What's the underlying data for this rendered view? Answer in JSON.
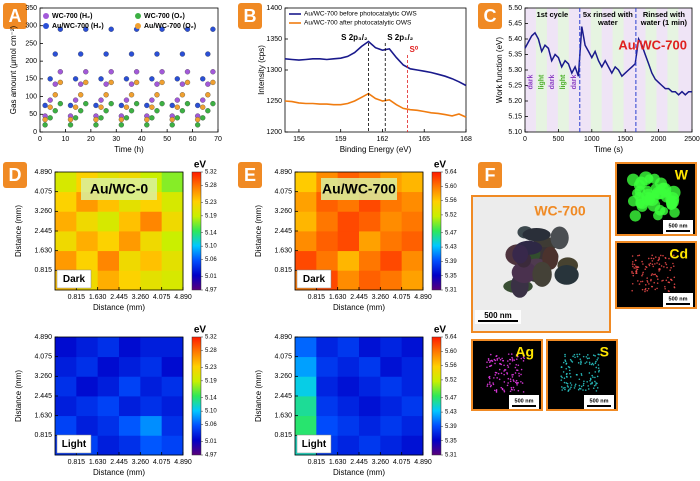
{
  "panel_labels": [
    "A",
    "B",
    "C",
    "D",
    "E",
    "F"
  ],
  "chart_data": [
    {
      "type": "scatter",
      "x_label": "Time (h)",
      "y_label": "Gas amount (μmol cm⁻²)",
      "x": [
        2,
        4,
        6,
        8,
        12,
        14,
        16,
        18,
        22,
        24,
        26,
        28,
        32,
        34,
        36,
        38,
        42,
        44,
        46,
        48,
        52,
        54,
        56,
        58,
        62,
        64,
        66,
        68
      ],
      "series": [
        {
          "name": "WC-700 (H₂)",
          "color": "#a259d9",
          "values": [
            45,
            90,
            135,
            170,
            45,
            90,
            135,
            170,
            45,
            90,
            135,
            170,
            45,
            90,
            135,
            170,
            45,
            90,
            135,
            170,
            45,
            90,
            135,
            170,
            45,
            90,
            135,
            170
          ]
        },
        {
          "name": "WC-700 (O₂)",
          "color": "#3cb043",
          "values": [
            20,
            40,
            60,
            80,
            20,
            40,
            60,
            80,
            20,
            40,
            60,
            80,
            20,
            40,
            60,
            80,
            20,
            40,
            60,
            80,
            20,
            40,
            60,
            80,
            20,
            40,
            60,
            80
          ]
        },
        {
          "name": "Au/WC-700 (H₂)",
          "color": "#2a4fd6",
          "values": [
            75,
            150,
            220,
            290,
            75,
            150,
            220,
            290,
            75,
            150,
            220,
            290,
            75,
            150,
            220,
            290,
            75,
            150,
            220,
            290,
            75,
            150,
            220,
            290,
            75,
            150,
            220,
            290
          ]
        },
        {
          "name": "Au/WC-700 (O₂)",
          "color": "#f0a030",
          "values": [
            35,
            70,
            105,
            140,
            35,
            70,
            105,
            140,
            35,
            70,
            105,
            140,
            35,
            70,
            105,
            140,
            35,
            70,
            105,
            140,
            35,
            70,
            105,
            140,
            35,
            70,
            105,
            140
          ]
        }
      ],
      "xlim": [
        0,
        70
      ],
      "xticks": [
        0,
        10,
        20,
        30,
        40,
        50,
        60,
        70
      ],
      "ylim": [
        0,
        350
      ],
      "yticks": [
        0,
        50,
        100,
        150,
        200,
        250,
        300,
        350
      ]
    },
    {
      "type": "line",
      "x_label": "Binding Energy (eV)",
      "y_label": "Intensity (cps)",
      "x": [
        155,
        155.5,
        156,
        156.5,
        157,
        157.5,
        158,
        158.5,
        159,
        159.5,
        160,
        160.5,
        161,
        161.5,
        162,
        162.5,
        163,
        163.5,
        164,
        164.5,
        165,
        165.5,
        166,
        166.5,
        167,
        167.5,
        168
      ],
      "series": [
        {
          "name": "Au/WC-700 before photocatalytic OWS",
          "color": "#1a1a8c",
          "values": [
            1318,
            1317,
            1316,
            1317,
            1318,
            1318,
            1317,
            1318,
            1319,
            1322,
            1328,
            1338,
            1346,
            1336,
            1332,
            1334,
            1320,
            1308,
            1302,
            1300,
            1298,
            1296,
            1293,
            1290,
            1286,
            1281,
            1275
          ]
        },
        {
          "name": "Au/WC-700 after photocatalytic OWS",
          "color": "#f07c10",
          "values": [
            1250,
            1249,
            1247,
            1246,
            1246,
            1245,
            1245,
            1244,
            1244,
            1246,
            1250,
            1256,
            1262,
            1254,
            1250,
            1252,
            1244,
            1238,
            1236,
            1235,
            1233,
            1231,
            1230,
            1228,
            1226,
            1229,
            1224
          ]
        }
      ],
      "annotations": [
        {
          "text": "S 2p₃/₂",
          "x": 161,
          "color": "#000000"
        },
        {
          "text": "S 2p₁/₂",
          "x": 162.2,
          "color": "#000000"
        },
        {
          "text": "S⁰",
          "x": 163.8,
          "color": "#e02020"
        }
      ],
      "xlim": [
        155,
        168
      ],
      "xticks": [
        156,
        159,
        162,
        165,
        168
      ],
      "ylim": [
        1200,
        1400
      ],
      "yticks": [
        1200,
        1250,
        1300,
        1350,
        1400
      ]
    },
    {
      "type": "line",
      "x_label": "Time (s)",
      "y_label": "Work function (eV)",
      "sample": "Au/WC-700",
      "color": "#1a1a8c",
      "x": [
        0,
        50,
        100,
        150,
        200,
        250,
        300,
        350,
        400,
        450,
        500,
        550,
        600,
        650,
        700,
        750,
        800,
        850,
        900,
        950,
        1000,
        1050,
        1100,
        1150,
        1200,
        1250,
        1300,
        1350,
        1400,
        1450,
        1500,
        1550,
        1600,
        1650,
        1700,
        1750,
        1800,
        1850,
        1900,
        1950,
        2000,
        2050,
        2100,
        2150,
        2200,
        2250,
        2300,
        2350,
        2400,
        2450,
        2500
      ],
      "values": [
        5.37,
        5.39,
        5.41,
        5.42,
        5.4,
        5.36,
        5.38,
        5.37,
        5.33,
        5.35,
        5.34,
        5.31,
        5.33,
        5.32,
        5.29,
        5.31,
        5.28,
        5.44,
        5.38,
        5.36,
        5.34,
        5.36,
        5.33,
        5.31,
        5.33,
        5.31,
        5.29,
        5.31,
        5.3,
        5.28,
        5.29,
        5.3,
        5.31,
        5.32,
        5.4,
        5.38,
        5.35,
        5.32,
        5.29,
        5.27,
        5.26,
        5.25,
        5.24,
        5.24,
        5.23,
        5.23,
        5.22,
        5.23,
        5.22,
        5.23,
        5.23
      ],
      "vlines": [
        820,
        1660
      ],
      "segments": [
        "1st cycle",
        "5x rinsed with water",
        "Rinsed with water (1 min)"
      ],
      "phases": [
        {
          "label": "dark",
          "color": "#8b3fc2"
        },
        {
          "label": "light",
          "color": "#4caf2a"
        },
        {
          "label": "dark",
          "color": "#8b3fc2"
        },
        {
          "label": "light",
          "color": "#4caf2a"
        },
        {
          "label": "dark",
          "color": "#8b3fc2"
        }
      ],
      "xlim": [
        0,
        2500
      ],
      "xticks": [
        0,
        500,
        1000,
        1500,
        2000,
        2500
      ],
      "ylim": [
        5.1,
        5.5
      ],
      "yticks": [
        {
          "value": 5.1,
          "label": "5.10"
        },
        5.15,
        {
          "value": 5.2,
          "label": "5.20"
        },
        5.25,
        {
          "value": 5.3,
          "label": "5.30"
        },
        5.35,
        {
          "value": 5.4,
          "label": "5.40"
        },
        5.45,
        {
          "value": 5.5,
          "label": "5.50"
        }
      ]
    },
    {
      "type": "heatmap",
      "title": "Au/WC-0",
      "condition": "Dark",
      "x_label": "Distance (mm)",
      "y_label": "Distance (mm)",
      "colorbar_label": "eV",
      "xlim": [
        0,
        4.89
      ],
      "ylim": [
        0,
        4.89
      ],
      "xticks": [
        0.815,
        {
          "value": 1.63,
          "label": "1.630"
        },
        2.445,
        {
          "value": 3.26,
          "label": "3.260"
        },
        4.075,
        {
          "value": 4.89,
          "label": "4.890"
        }
      ],
      "yticks": [
        0.815,
        {
          "value": 1.63,
          "label": "1.630"
        },
        2.445,
        {
          "value": 3.26,
          "label": "3.260"
        },
        4.075,
        {
          "value": 4.89,
          "label": "4.890"
        }
      ],
      "zlim": [
        4.97,
        5.32
      ],
      "zticks": [
        5.32,
        5.28,
        5.23,
        5.19,
        5.14,
        {
          "value": 5.1,
          "label": "5.10"
        },
        5.06,
        5.01,
        4.97
      ],
      "colormap": [
        "#5a007a",
        "#0000c8",
        "#0050ff",
        "#00c8ff",
        "#2ee85a",
        "#c8f000",
        "#ffd000",
        "#ff7a00",
        "#ff1a00"
      ],
      "values": [
        [
          5.24,
          5.22,
          5.25,
          5.23,
          5.21,
          5.2
        ],
        [
          5.26,
          5.23,
          5.27,
          5.22,
          5.24,
          5.21
        ],
        [
          5.22,
          5.25,
          5.23,
          5.26,
          5.22,
          5.19
        ],
        [
          5.25,
          5.22,
          5.2,
          5.24,
          5.27,
          5.22
        ],
        [
          5.23,
          5.26,
          5.24,
          5.21,
          5.23,
          5.2
        ],
        [
          5.2,
          5.23,
          5.21,
          5.22,
          5.19,
          5.17
        ]
      ]
    },
    {
      "type": "heatmap",
      "condition": "Light",
      "x_label": "Distance (mm)",
      "y_label": "Distance (mm)",
      "colorbar_label": "eV",
      "xlim": [
        0,
        4.89
      ],
      "ylim": [
        0,
        4.89
      ],
      "xticks": [
        0.815,
        {
          "value": 1.63,
          "label": "1.630"
        },
        2.445,
        {
          "value": 3.26,
          "label": "3.260"
        },
        4.075,
        {
          "value": 4.89,
          "label": "4.890"
        }
      ],
      "yticks": [
        0.815,
        {
          "value": 1.63,
          "label": "1.630"
        },
        2.445,
        {
          "value": 3.26,
          "label": "3.260"
        },
        4.075,
        {
          "value": 4.89,
          "label": "4.890"
        }
      ],
      "zlim": [
        4.97,
        5.32
      ],
      "zticks": [
        5.32,
        5.28,
        5.23,
        5.19,
        5.14,
        {
          "value": 5.1,
          "label": "5.10"
        },
        5.06,
        5.01,
        4.97
      ],
      "colormap": [
        "#5a007a",
        "#0000c8",
        "#0050ff",
        "#00c8ff",
        "#2ee85a",
        "#c8f000",
        "#ffd000",
        "#ff7a00",
        "#ff1a00"
      ],
      "values": [
        [
          5.04,
          5.05,
          5.03,
          5.04,
          5.06,
          5.05
        ],
        [
          5.05,
          5.03,
          5.04,
          5.06,
          5.08,
          5.04
        ],
        [
          5.03,
          5.04,
          5.05,
          5.03,
          5.04,
          5.03
        ],
        [
          5.04,
          5.02,
          5.03,
          5.05,
          5.03,
          5.04
        ],
        [
          5.03,
          5.04,
          5.02,
          5.03,
          5.04,
          5.02
        ],
        [
          5.02,
          5.03,
          5.04,
          5.02,
          5.03,
          5.03
        ]
      ]
    },
    {
      "type": "heatmap",
      "title": "Au/WC-700",
      "condition": "Dark",
      "x_label": "Distance (mm)",
      "y_label": "Distance (mm)",
      "colorbar_label": "eV",
      "xlim": [
        0,
        4.89
      ],
      "ylim": [
        0,
        4.89
      ],
      "xticks": [
        0.815,
        {
          "value": 1.63,
          "label": "1.630"
        },
        2.445,
        {
          "value": 3.26,
          "label": "3.260"
        },
        4.075,
        {
          "value": 4.89,
          "label": "4.890"
        }
      ],
      "yticks": [
        0.815,
        {
          "value": 1.63,
          "label": "1.630"
        },
        2.445,
        {
          "value": 3.26,
          "label": "3.260"
        },
        4.075,
        {
          "value": 4.89,
          "label": "4.890"
        }
      ],
      "zlim": [
        5.31,
        5.64
      ],
      "zticks": [
        5.64,
        {
          "value": 5.6,
          "label": "5.60"
        },
        5.56,
        5.52,
        5.47,
        5.43,
        5.39,
        5.35,
        5.31
      ],
      "colormap": [
        "#5a007a",
        "#0000c8",
        "#0050ff",
        "#00c8ff",
        "#2ee85a",
        "#c8f000",
        "#ffd000",
        "#ff7a00",
        "#ff1a00"
      ],
      "values": [
        [
          5.6,
          5.62,
          5.59,
          5.61,
          5.6,
          5.58
        ],
        [
          5.62,
          5.6,
          5.57,
          5.6,
          5.62,
          5.59
        ],
        [
          5.59,
          5.61,
          5.62,
          5.58,
          5.6,
          5.61
        ],
        [
          5.57,
          5.6,
          5.62,
          5.61,
          5.59,
          5.6
        ],
        [
          5.58,
          5.61,
          5.6,
          5.62,
          5.6,
          5.59
        ],
        [
          5.56,
          5.59,
          5.61,
          5.6,
          5.58,
          5.57
        ]
      ]
    },
    {
      "type": "heatmap",
      "condition": "Light",
      "x_label": "Distance (mm)",
      "y_label": "Distance (mm)",
      "colorbar_label": "eV",
      "xlim": [
        0,
        4.89
      ],
      "ylim": [
        0,
        4.89
      ],
      "xticks": [
        0.815,
        {
          "value": 1.63,
          "label": "1.630"
        },
        2.445,
        {
          "value": 3.26,
          "label": "3.260"
        },
        4.075,
        {
          "value": 4.89,
          "label": "4.890"
        }
      ],
      "yticks": [
        0.815,
        {
          "value": 1.63,
          "label": "1.630"
        },
        2.445,
        {
          "value": 3.26,
          "label": "3.260"
        },
        4.075,
        {
          "value": 4.89,
          "label": "4.890"
        }
      ],
      "zlim": [
        5.31,
        5.64
      ],
      "zticks": [
        5.64,
        {
          "value": 5.6,
          "label": "5.60"
        },
        5.56,
        5.52,
        5.47,
        5.43,
        5.39,
        5.35,
        5.31
      ],
      "colormap": [
        "#5a007a",
        "#0000c8",
        "#0050ff",
        "#00c8ff",
        "#2ee85a",
        "#c8f000",
        "#ffd000",
        "#ff7a00",
        "#ff1a00"
      ],
      "values": [
        [
          5.45,
          5.38,
          5.37,
          5.38,
          5.37,
          5.36
        ],
        [
          5.47,
          5.39,
          5.38,
          5.37,
          5.38,
          5.37
        ],
        [
          5.46,
          5.38,
          5.37,
          5.36,
          5.37,
          5.38
        ],
        [
          5.44,
          5.37,
          5.36,
          5.37,
          5.38,
          5.37
        ],
        [
          5.42,
          5.38,
          5.37,
          5.38,
          5.36,
          5.37
        ],
        [
          5.4,
          5.37,
          5.38,
          5.36,
          5.37,
          5.36
        ]
      ]
    }
  ],
  "images": {
    "title": "WC-700",
    "scale_bar": "500 nm",
    "maps": [
      "W",
      "Cd",
      "Ag",
      "S"
    ]
  }
}
